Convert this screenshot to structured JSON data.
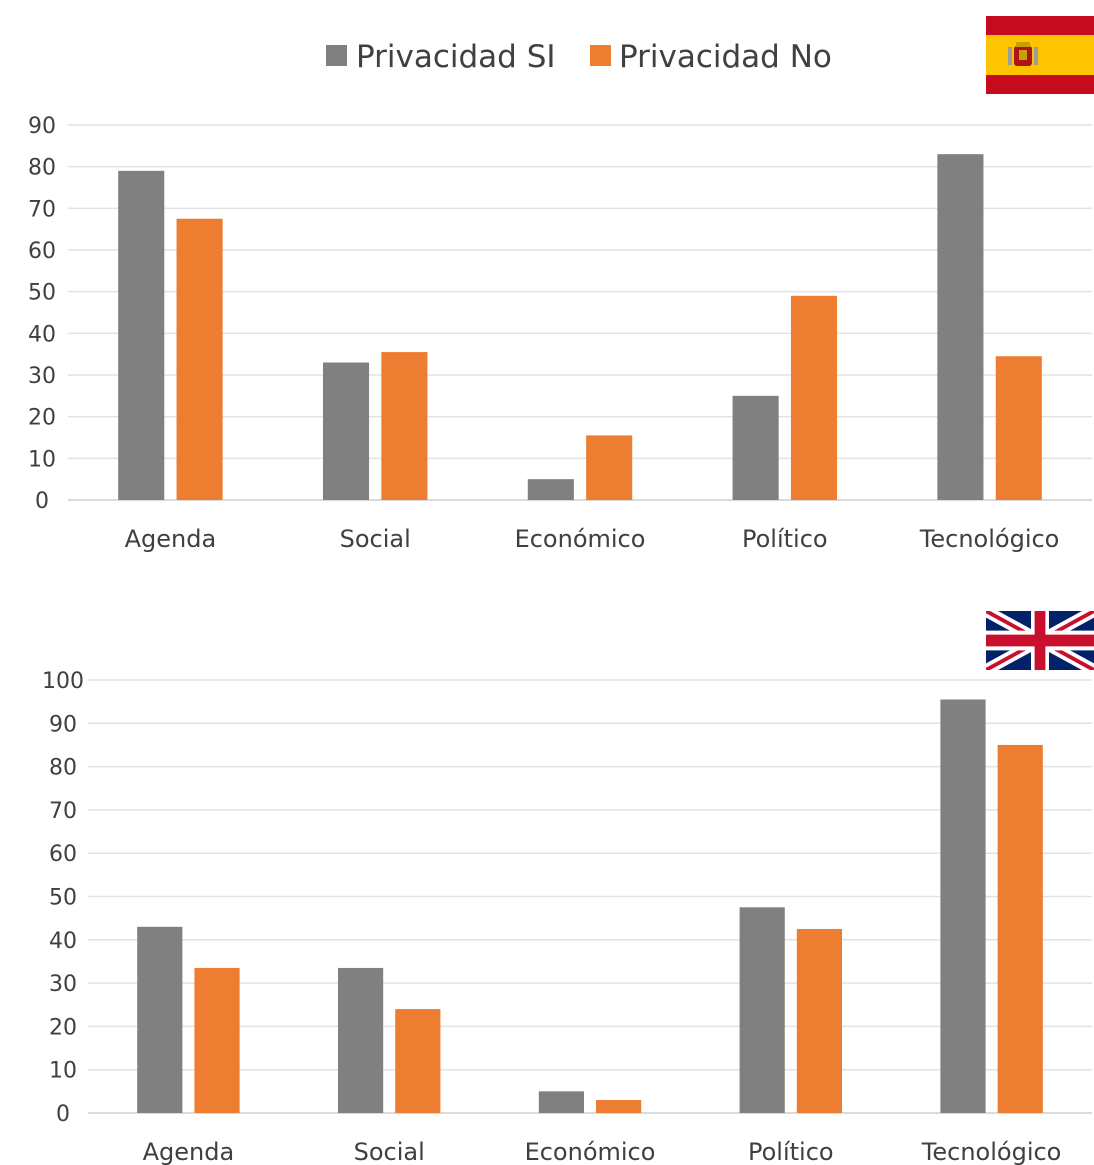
{
  "legend": {
    "series_1": "Privacidad SI",
    "series_2": "Privacidad No"
  },
  "colors": {
    "series_1": "#808080",
    "series_2": "#ED7D31",
    "spain_red": "#C60B1E",
    "spain_yellow": "#FFC400",
    "uk_blue": "#012169",
    "uk_red": "#C8102E"
  },
  "flags": {
    "chart_spain": "flag-spain-icon",
    "chart_uk": "flag-united-kingdom-icon"
  },
  "chart_data": [
    {
      "type": "bar",
      "categories": [
        "Agenda",
        "Social",
        "Económico",
        "Político",
        "Tecnológico"
      ],
      "series": [
        {
          "name": "Privacidad SI",
          "values": [
            79,
            33,
            5,
            25,
            83
          ]
        },
        {
          "name": "Privacidad No",
          "values": [
            67.5,
            35.5,
            15.5,
            49,
            34.5
          ]
        }
      ],
      "ylim": [
        0,
        90
      ],
      "yticks": [
        0,
        10,
        20,
        30,
        40,
        50,
        60,
        70,
        80,
        90
      ],
      "grid": true,
      "legend_position": "top"
    },
    {
      "type": "bar",
      "categories": [
        "Agenda",
        "Social",
        "Económico",
        "Político",
        "Tecnológico"
      ],
      "series": [
        {
          "name": "Privacidad SI",
          "values": [
            43,
            33.5,
            5,
            47.5,
            95.5
          ]
        },
        {
          "name": "Privacidad No",
          "values": [
            33.5,
            24,
            3,
            42.5,
            85
          ]
        }
      ],
      "ylim": [
        0,
        100
      ],
      "yticks": [
        0,
        10,
        20,
        30,
        40,
        50,
        60,
        70,
        80,
        90,
        100
      ],
      "grid": true,
      "legend_position": "none"
    }
  ]
}
